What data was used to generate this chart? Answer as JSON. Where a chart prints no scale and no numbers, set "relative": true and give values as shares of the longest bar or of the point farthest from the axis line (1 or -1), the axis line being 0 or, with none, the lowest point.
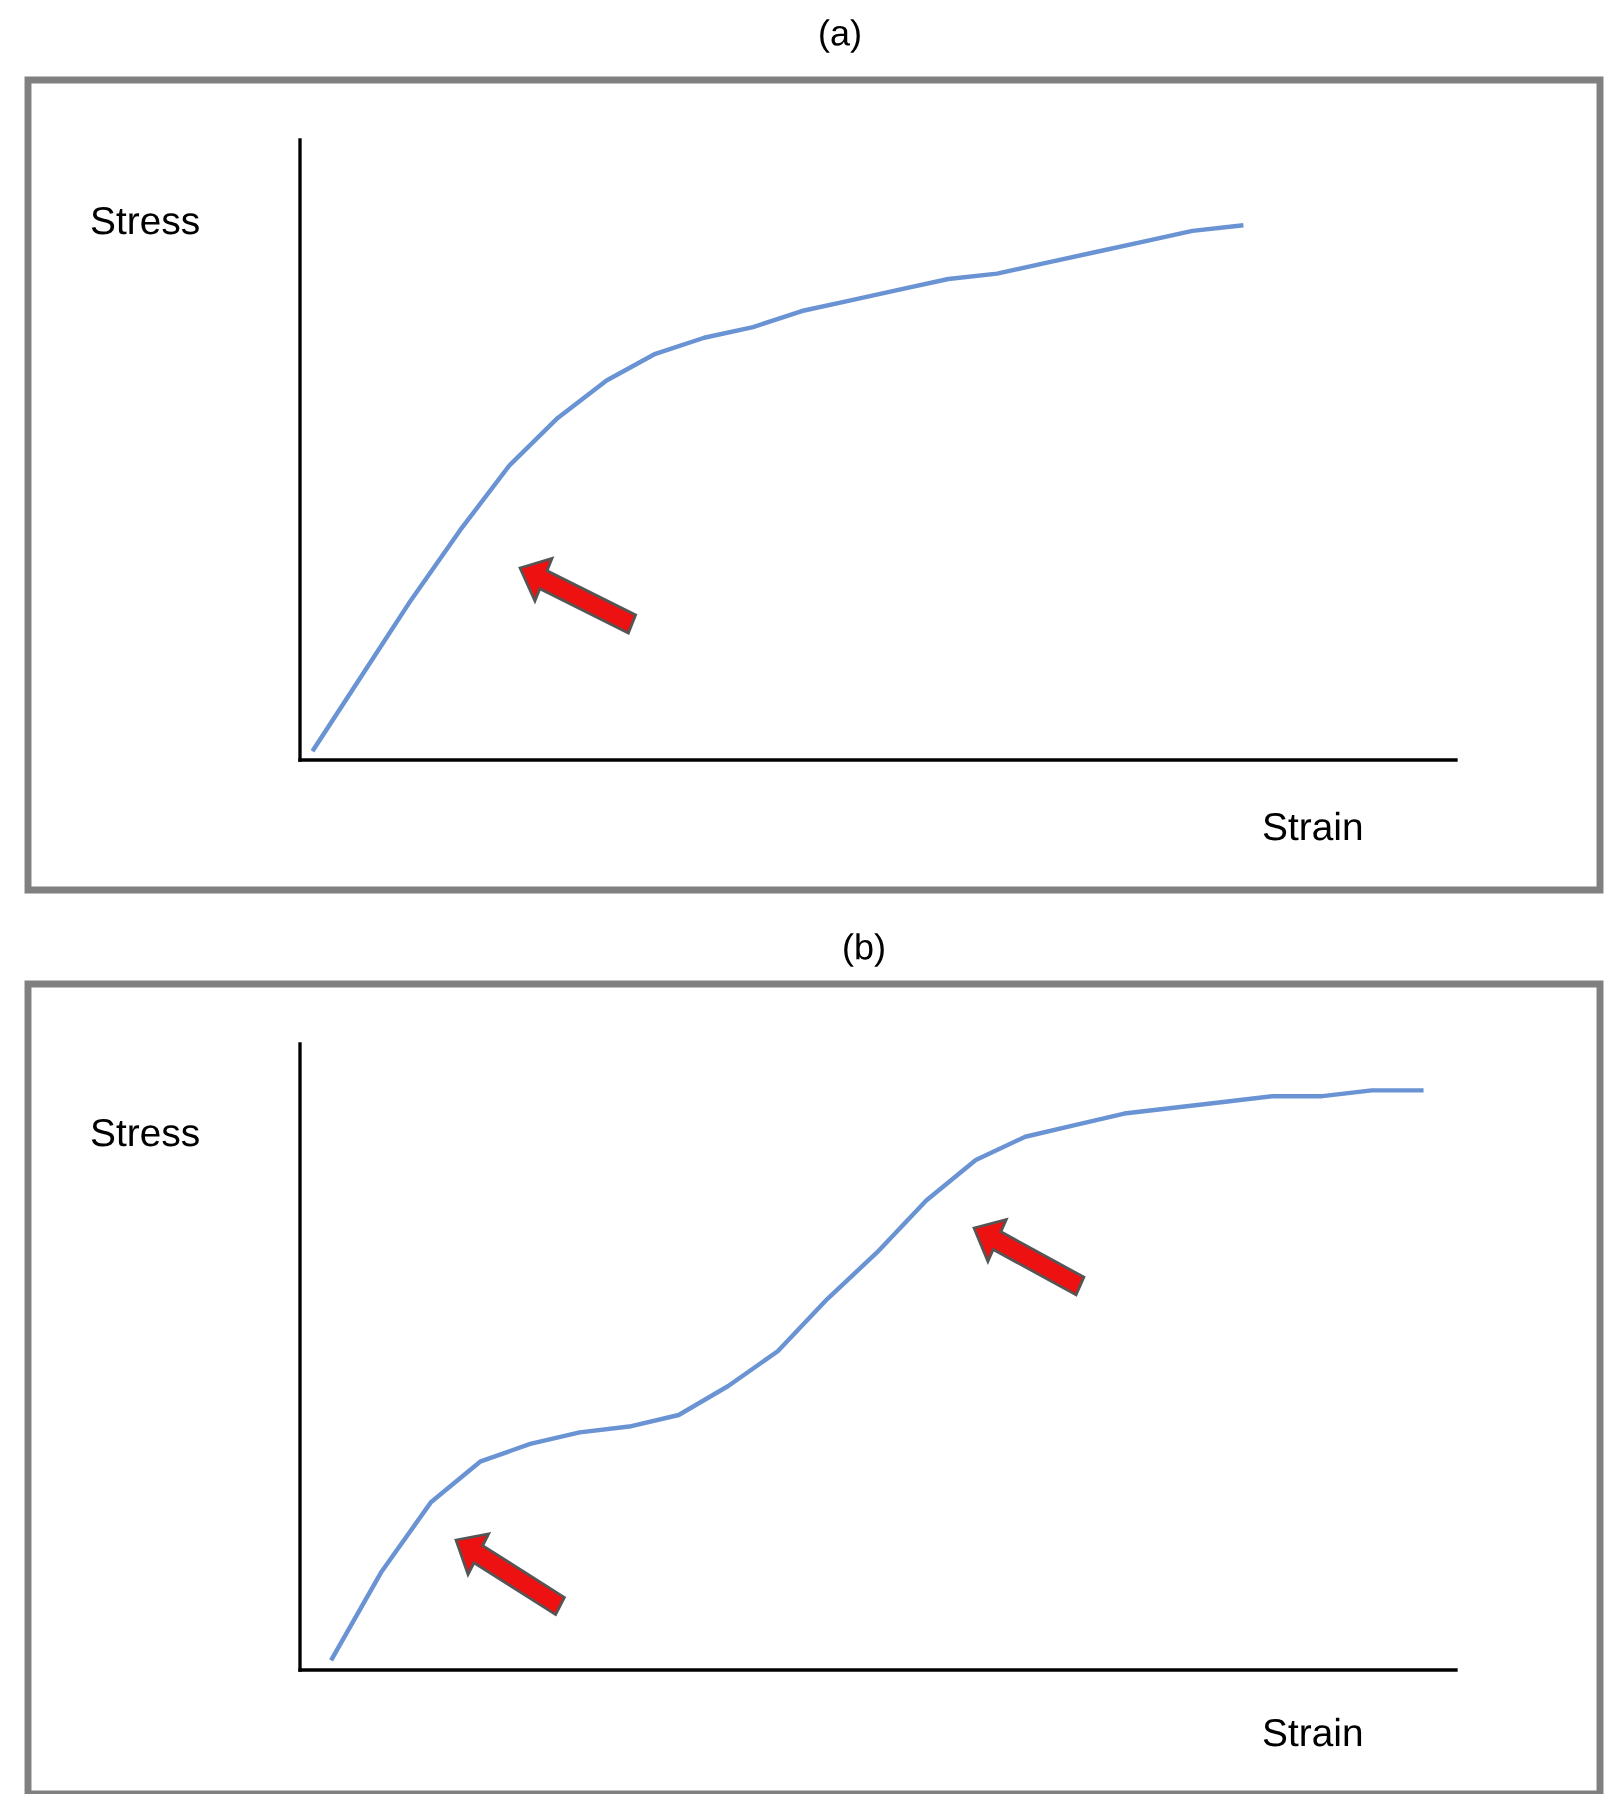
{
  "chart_data": [
    {
      "type": "line",
      "title": "(a)",
      "ylabel": "Stress",
      "xlabel": "Strain",
      "relative": true,
      "grid": false,
      "legend": false,
      "marker": "none",
      "line_style": "solid",
      "categories": [
        null,
        null,
        null,
        null,
        null,
        null,
        null,
        null,
        null,
        null,
        null,
        null,
        null,
        null,
        null,
        null,
        null,
        null,
        null,
        null
      ],
      "series": [
        {
          "color": "#6a93d4",
          "values": [
            0.02,
            0.16,
            0.3,
            0.43,
            0.55,
            0.64,
            0.71,
            0.76,
            0.79,
            0.81,
            0.84,
            0.86,
            0.88,
            0.9,
            0.91,
            0.93,
            0.95,
            0.97,
            0.99,
            1.0
          ]
        }
      ]
    },
    {
      "type": "line",
      "title": "(b)",
      "ylabel": "Stress",
      "xlabel": "Strain",
      "relative": true,
      "grid": false,
      "legend": false,
      "marker": "none",
      "line_style": "solid",
      "categories": [
        null,
        null,
        null,
        null,
        null,
        null,
        null,
        null,
        null,
        null,
        null,
        null,
        null,
        null,
        null,
        null,
        null,
        null,
        null,
        null,
        null,
        null,
        null
      ],
      "series": [
        {
          "color": "#6a93d4",
          "values": [
            0.02,
            0.17,
            0.29,
            0.36,
            0.39,
            0.41,
            0.42,
            0.44,
            0.49,
            0.55,
            0.64,
            0.72,
            0.81,
            0.88,
            0.92,
            0.94,
            0.96,
            0.97,
            0.98,
            0.99,
            0.99,
            1.0,
            1.0
          ]
        }
      ]
    }
  ]
}
